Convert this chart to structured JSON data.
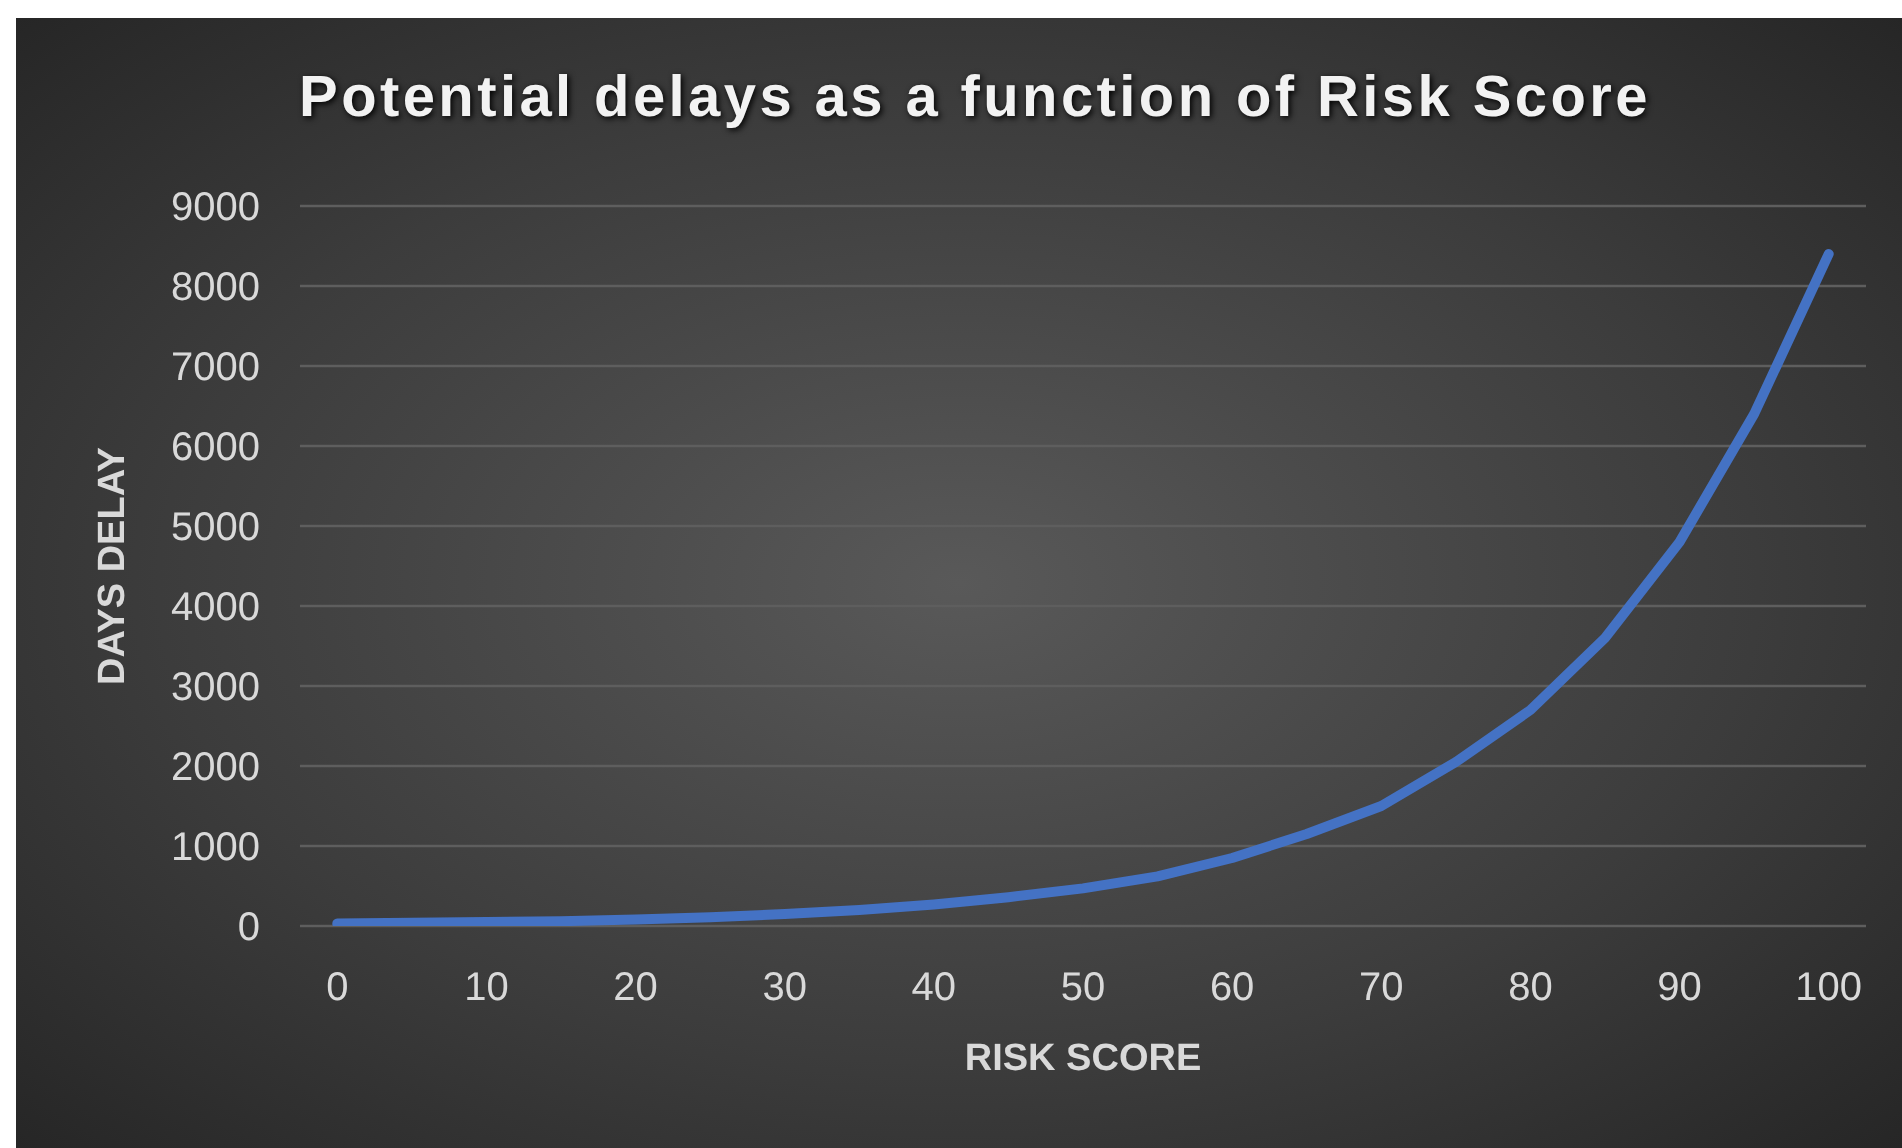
{
  "chart_data": {
    "type": "line",
    "title": "Potential delays as a function of Risk Score",
    "xlabel": "RISK SCORE",
    "ylabel": "DAYS DELAY",
    "categories": [
      "0",
      null,
      "10",
      null,
      "20",
      null,
      "30",
      null,
      "40",
      null,
      "50",
      null,
      "60",
      null,
      "70",
      null,
      "80",
      null,
      "90",
      null,
      "100"
    ],
    "series": [
      {
        "color": "#4472c4",
        "values": [
          30,
          40,
          50,
          60,
          80,
          110,
          150,
          200,
          270,
          360,
          470,
          620,
          850,
          1150,
          1500,
          2050,
          2700,
          3600,
          4800,
          6400,
          8400
        ]
      }
    ],
    "ylim": [
      0,
      9000
    ],
    "yticks": [
      0,
      1000,
      2000,
      3000,
      4000,
      5000,
      6000,
      7000,
      8000,
      9000
    ],
    "grid": "y",
    "marker": "none",
    "line_style": "solid"
  }
}
